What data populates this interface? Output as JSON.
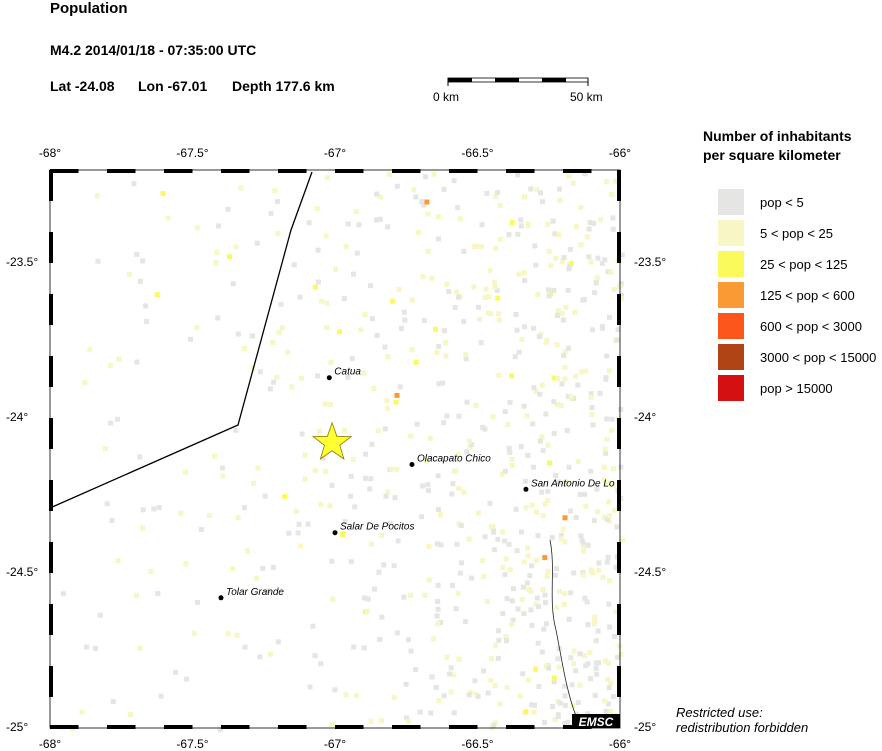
{
  "header": {
    "title": "Population",
    "event": "M4.2  2014/01/18 - 07:35:00 UTC",
    "lat": "Lat -24.08",
    "lon": "Lon -67.01",
    "depth": "Depth 177.6 km"
  },
  "scale_bar": {
    "start_label": "0 km",
    "end_label": "50 km"
  },
  "map": {
    "lon_range": [
      -68,
      -66
    ],
    "lat_range": [
      -23.2,
      -25
    ],
    "lon_ticks": [
      "-68°",
      "-67.5°",
      "-67°",
      "-66.5°",
      "-66°"
    ],
    "lat_ticks": [
      "-23.5°",
      "-24°",
      "-24.5°",
      "-25°"
    ],
    "epicenter": {
      "lat": -24.08,
      "lon": -67.01,
      "color": "#ffff33"
    },
    "cities": [
      {
        "name": "Catua",
        "lat": -23.87,
        "lon": -67.02
      },
      {
        "name": "Olacapato Chico",
        "lat": -24.15,
        "lon": -66.73
      },
      {
        "name": "San Antonio De Lo",
        "lat": -24.23,
        "lon": -66.33
      },
      {
        "name": "Salar De Pocitos",
        "lat": -24.37,
        "lon": -67.0
      },
      {
        "name": "Tolar Grande",
        "lat": -24.58,
        "lon": -67.4
      }
    ],
    "logo": "EMSC"
  },
  "legend": {
    "title_line1": "Number of inhabitants",
    "title_line2": "per square kilometer",
    "items": [
      {
        "label": "pop < 5",
        "color": "#e5e6e3"
      },
      {
        "label": "5 < pop < 25",
        "color": "#f7f6c4"
      },
      {
        "label": "25 < pop < 125",
        "color": "#fafa5c"
      },
      {
        "label": "125 < pop < 600",
        "color": "#fa9a35"
      },
      {
        "label": "600 < pop < 3000",
        "color": "#fc561a"
      },
      {
        "label": "3000 < pop < 15000",
        "color": "#b04414"
      },
      {
        "label": "pop > 15000",
        "color": "#d51010"
      }
    ]
  },
  "notice": {
    "line1": "Restricted use:",
    "line2": "redistribution forbidden"
  }
}
